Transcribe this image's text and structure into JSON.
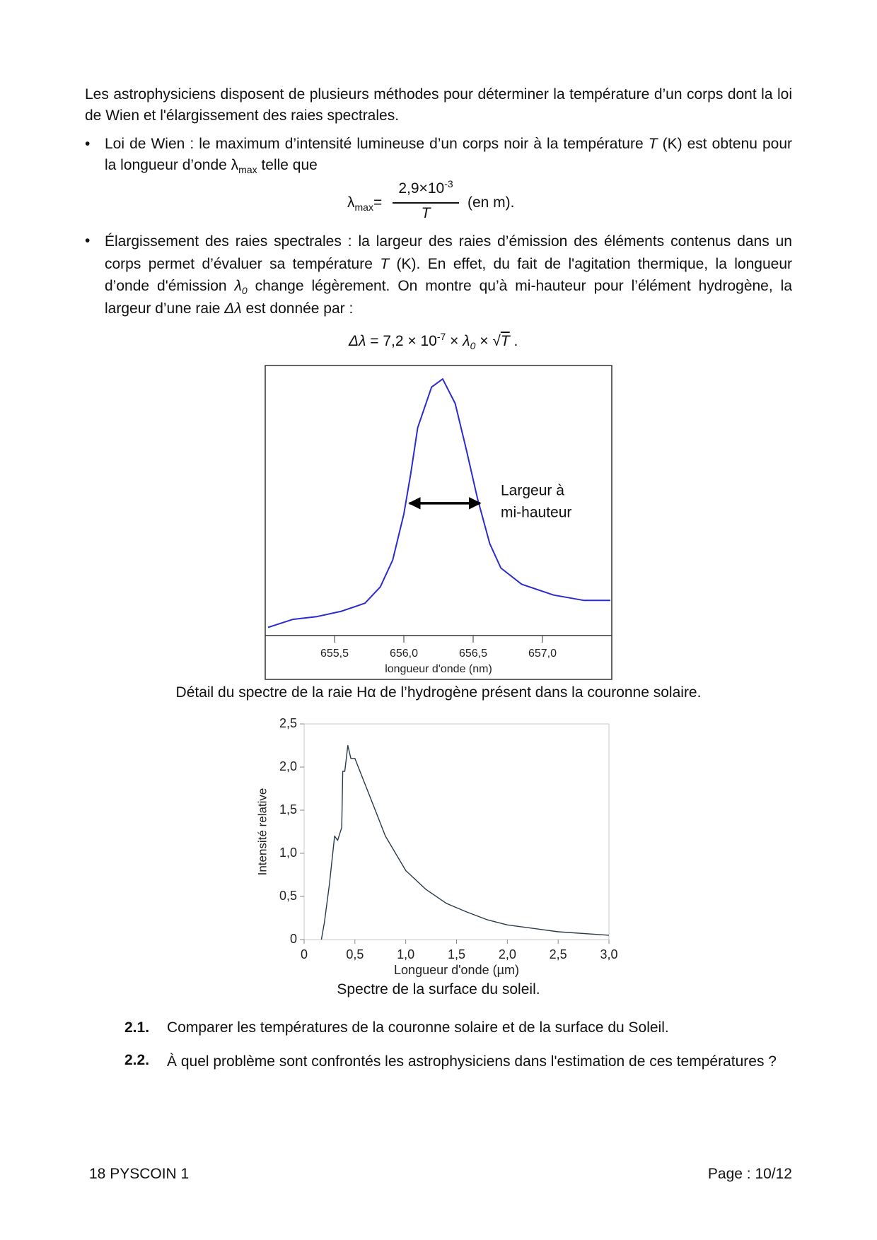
{
  "intro": "Les astrophysiciens disposent de plusieurs méthodes pour déterminer la température d’un corps dont la loi de Wien et l'élargissement des raies spectrales.",
  "bullet1": {
    "text_a": "Loi de Wien : le maximum d’intensité lumineuse d’un corps noir à la température ",
    "var_T": "T",
    "text_b": " (K) est obtenu pour la longueur d’onde λ",
    "sub": "max",
    "text_c": " telle que"
  },
  "formula1": {
    "lhs": "λ",
    "lhs_sub": "max",
    "eq": "=",
    "numerator": "2,9×10",
    "exponent": "-3",
    "denominator": "T",
    "unit": "(en m)."
  },
  "bullet2": {
    "text_a": "Élargissement des raies spectrales : la largeur des raies d’émission des éléments contenus dans un corps permet d’évaluer sa température ",
    "var_T": "T",
    "text_b": " (K). En effet, du fait de l'agitation thermique, la longueur d’onde d'émission ",
    "lambda0": "λ",
    "sub0": "0",
    "text_c": " change légèrement. On montre qu’à mi-hauteur pour l’élément hydrogène, la largeur d’une raie ",
    "delta": "Δλ",
    "text_d": " est donnée par :"
  },
  "formula2": {
    "lhs": "Δλ",
    "mid": " = 7,2 × 10",
    "exponent": "-7",
    "times1": " × ",
    "lambda": "λ",
    "sub": "0",
    "times2": " × ",
    "sqrt": "√",
    "T": "T",
    "end": " ."
  },
  "figure1": {
    "chart": {
      "type": "line",
      "xlabel": "longueur d'onde (nm)",
      "x": [
        655.02,
        655.2,
        655.37,
        655.55,
        655.72,
        655.83,
        655.92,
        656.0,
        656.05,
        656.1,
        656.2,
        656.28,
        656.37,
        656.45,
        656.53,
        656.62,
        656.7,
        656.85,
        657.08,
        657.3,
        657.49
      ],
      "series": [
        {
          "color": "#2b2bd0",
          "values": [
            0.03,
            0.06,
            0.07,
            0.09,
            0.12,
            0.18,
            0.28,
            0.45,
            0.6,
            0.77,
            0.92,
            0.95,
            0.86,
            0.69,
            0.51,
            0.34,
            0.25,
            0.19,
            0.15,
            0.13,
            0.13
          ]
        }
      ],
      "xlim": [
        655.0,
        657.5
      ],
      "ylim": [
        0,
        1
      ],
      "xticks": [
        {
          "value": 655.5,
          "label": "655,5"
        },
        {
          "value": 656.0,
          "label": "656,0"
        },
        {
          "value": 656.5,
          "label": "656,5"
        },
        {
          "value": 657.0,
          "label": "657,0"
        }
      ],
      "annotation": [
        "Largeur à",
        "mi-hauteur"
      ],
      "arrow": {
        "x": [
          656.04,
          656.55
        ],
        "y": 0.49
      }
    },
    "caption": "Détail du spectre de la raie Hα de l’hydrogène présent dans la couronne solaire."
  },
  "figure2": {
    "chart": {
      "type": "line",
      "xlabel": "Longueur d'onde (µm)",
      "ylabel": "Intensité relative",
      "x": [
        0.17,
        0.2,
        0.25,
        0.3,
        0.33,
        0.37,
        0.38,
        0.4,
        0.43,
        0.46,
        0.5,
        0.55,
        0.6,
        0.7,
        0.8,
        0.9,
        1.0,
        1.2,
        1.4,
        1.6,
        1.8,
        2.0,
        2.5,
        3.0
      ],
      "series": [
        {
          "color": "#2a3a4a",
          "values": [
            0,
            0.2,
            0.65,
            1.2,
            1.15,
            1.3,
            1.95,
            1.95,
            2.25,
            2.1,
            2.1,
            1.95,
            1.8,
            1.5,
            1.2,
            1.0,
            0.8,
            0.58,
            0.42,
            0.32,
            0.23,
            0.17,
            0.09,
            0.05
          ]
        }
      ],
      "xlim": [
        0,
        3
      ],
      "ylim": [
        0,
        2.5
      ],
      "xticks": [
        0,
        {
          "value": 0.5,
          "label": "0,5"
        },
        {
          "value": 1.0,
          "label": "1,0"
        },
        {
          "value": 1.5,
          "label": "1,5"
        },
        {
          "value": 2.0,
          "label": "2,0"
        },
        {
          "value": 2.5,
          "label": "2,5"
        },
        {
          "value": 3.0,
          "label": "3,0"
        }
      ],
      "yticks": [
        0,
        {
          "value": 0.5,
          "label": "0,5"
        },
        {
          "value": 1.0,
          "label": "1,0"
        },
        {
          "value": 1.5,
          "label": "1,5"
        },
        {
          "value": 2.0,
          "label": "2,0"
        },
        {
          "value": 2.5,
          "label": "2,5"
        }
      ]
    },
    "caption": "Spectre de la surface du soleil."
  },
  "questions": [
    {
      "number": "2.1.",
      "text": "Comparer les températures de la couronne solaire et de la surface du Soleil."
    },
    {
      "number": "2.2.",
      "text": "À quel problème sont confrontés les astrophysiciens dans l'estimation de ces températures ?"
    }
  ],
  "footer": {
    "left": "18 PYSCOIN 1",
    "right": "Page : 10/12"
  }
}
